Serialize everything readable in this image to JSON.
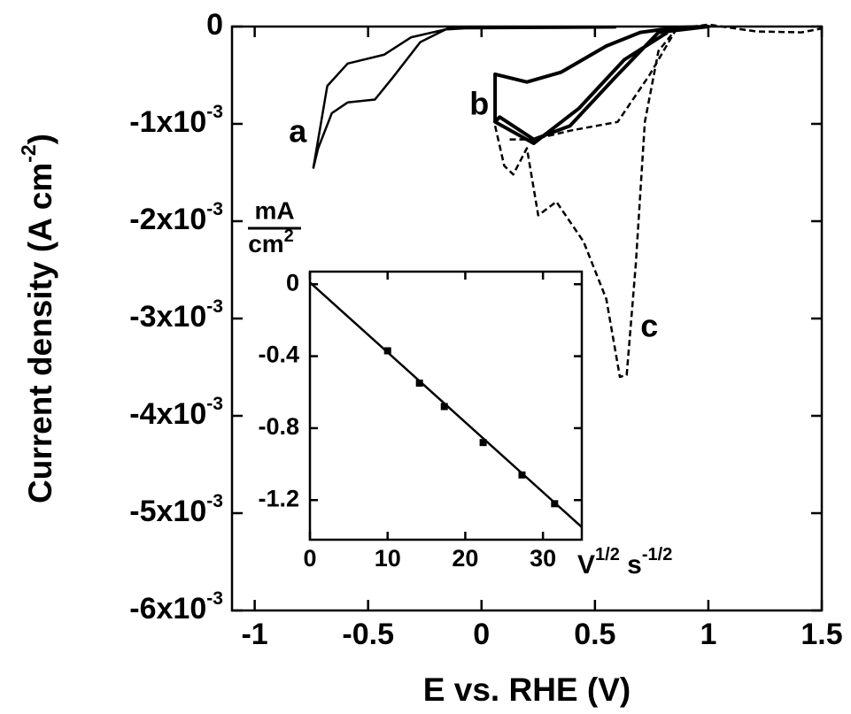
{
  "chart_data": [
    {
      "type": "line",
      "x_label": "E vs. RHE (V)",
      "y_label": "Current density (A cm",
      "y_label_sup": "-2",
      "y_label_end": ")",
      "xlim": [
        -1.1,
        1.5
      ],
      "xticks": [
        -1,
        -0.5,
        0,
        0.5,
        1,
        1.5
      ],
      "ylim": [
        -0.006,
        0
      ],
      "yticks": [
        0,
        {
          "value": -0.001,
          "label": "-1x10",
          "sup": "-3"
        },
        {
          "value": -0.002,
          "label": "-2x10",
          "sup": "-3"
        },
        {
          "value": -0.003,
          "label": "-3x10",
          "sup": "-3"
        },
        {
          "value": -0.004,
          "label": "-4x10",
          "sup": "-3"
        },
        {
          "value": -0.005,
          "label": "-5x10",
          "sup": "-3"
        },
        {
          "value": -0.006,
          "label": "-6x10",
          "sup": "-3"
        }
      ],
      "series": [
        {
          "name": "a",
          "color": "#000000",
          "dash": false,
          "line_width": 2.5,
          "x": [
            -0.742,
            -0.68,
            -0.59,
            -0.43,
            -0.31,
            -0.16,
            0,
            0.59,
            -0.15,
            -0.27,
            -0.39,
            -0.47,
            -0.59,
            -0.66,
            -0.72,
            -0.742
          ],
          "values": [
            -0.00146,
            -0.00061,
            -0.00038,
            -0.00029,
            -0.00011,
            -3e-05,
            -1e-05,
            -1e-05,
            -2e-05,
            -0.00016,
            -0.00052,
            -0.00075,
            -0.00078,
            -0.00089,
            -0.00125,
            -0.00146
          ]
        },
        {
          "name": "b",
          "color": "#000000",
          "dash": false,
          "line_width": 4,
          "x": [
            0.06,
            0.06,
            0.2,
            0.35,
            0.55,
            0.7,
            0.86,
            1.0,
            0.78,
            0.59,
            0.39,
            0.23,
            0.08,
            0.06,
            0.23,
            0.43,
            0.63,
            0.82
          ],
          "values": [
            -0.00098,
            -0.00049,
            -0.00057,
            -0.00047,
            -0.0002,
            -6e-05,
            -1e-05,
            0,
            -6e-05,
            -0.00052,
            -0.00102,
            -0.00116,
            -0.00093,
            -0.00098,
            -0.0012,
            -0.00084,
            -0.00034,
            -6e-05
          ]
        },
        {
          "name": "c",
          "color": "#000000",
          "dash": true,
          "line_width": 2.5,
          "x": [
            0.06,
            0.1,
            0.14,
            0.2,
            0.25,
            0.33,
            0.45,
            0.55,
            0.61,
            0.64,
            0.68,
            0.72,
            0.78,
            0.86,
            1.0,
            1.21,
            1.41,
            1.5,
            null,
            0.86,
            0.74,
            0.6,
            0.39,
            0.23,
            0.12
          ],
          "values": [
            -0.00102,
            -0.00143,
            -0.00152,
            -0.00125,
            -0.00194,
            -0.0018,
            -0.00221,
            -0.0028,
            -0.0036,
            -0.00358,
            -0.00244,
            -0.00098,
            -0.00025,
            -2e-05,
            2e-05,
            -5e-05,
            -6e-05,
            -2e-05,
            null,
            -2e-05,
            -0.0005,
            -0.00098,
            -0.00107,
            -0.00116,
            -0.00116
          ]
        }
      ]
    },
    {
      "type": "scatter",
      "x_label": "V",
      "x_label_sup": "1/2",
      "x_label_mid": " s",
      "x_label_sup2": "-1/2",
      "y_label_num": "mA",
      "y_label_den": "cm",
      "y_label_den_sup": "2",
      "xlim": [
        0,
        35
      ],
      "xticks": [
        0,
        10,
        20,
        30
      ],
      "ylim": [
        -1.42,
        0.07
      ],
      "yticks": [
        0,
        -0.4,
        -0.8,
        -1.2
      ],
      "color": "#000000",
      "x": [
        10,
        14.1,
        17.3,
        22.3,
        27.3,
        31.5
      ],
      "values": [
        -0.37,
        -0.55,
        -0.68,
        -0.88,
        -1.06,
        -1.22
      ],
      "fit": {
        "x": [
          0,
          35
        ],
        "values": [
          0.01,
          -1.35
        ]
      }
    }
  ]
}
